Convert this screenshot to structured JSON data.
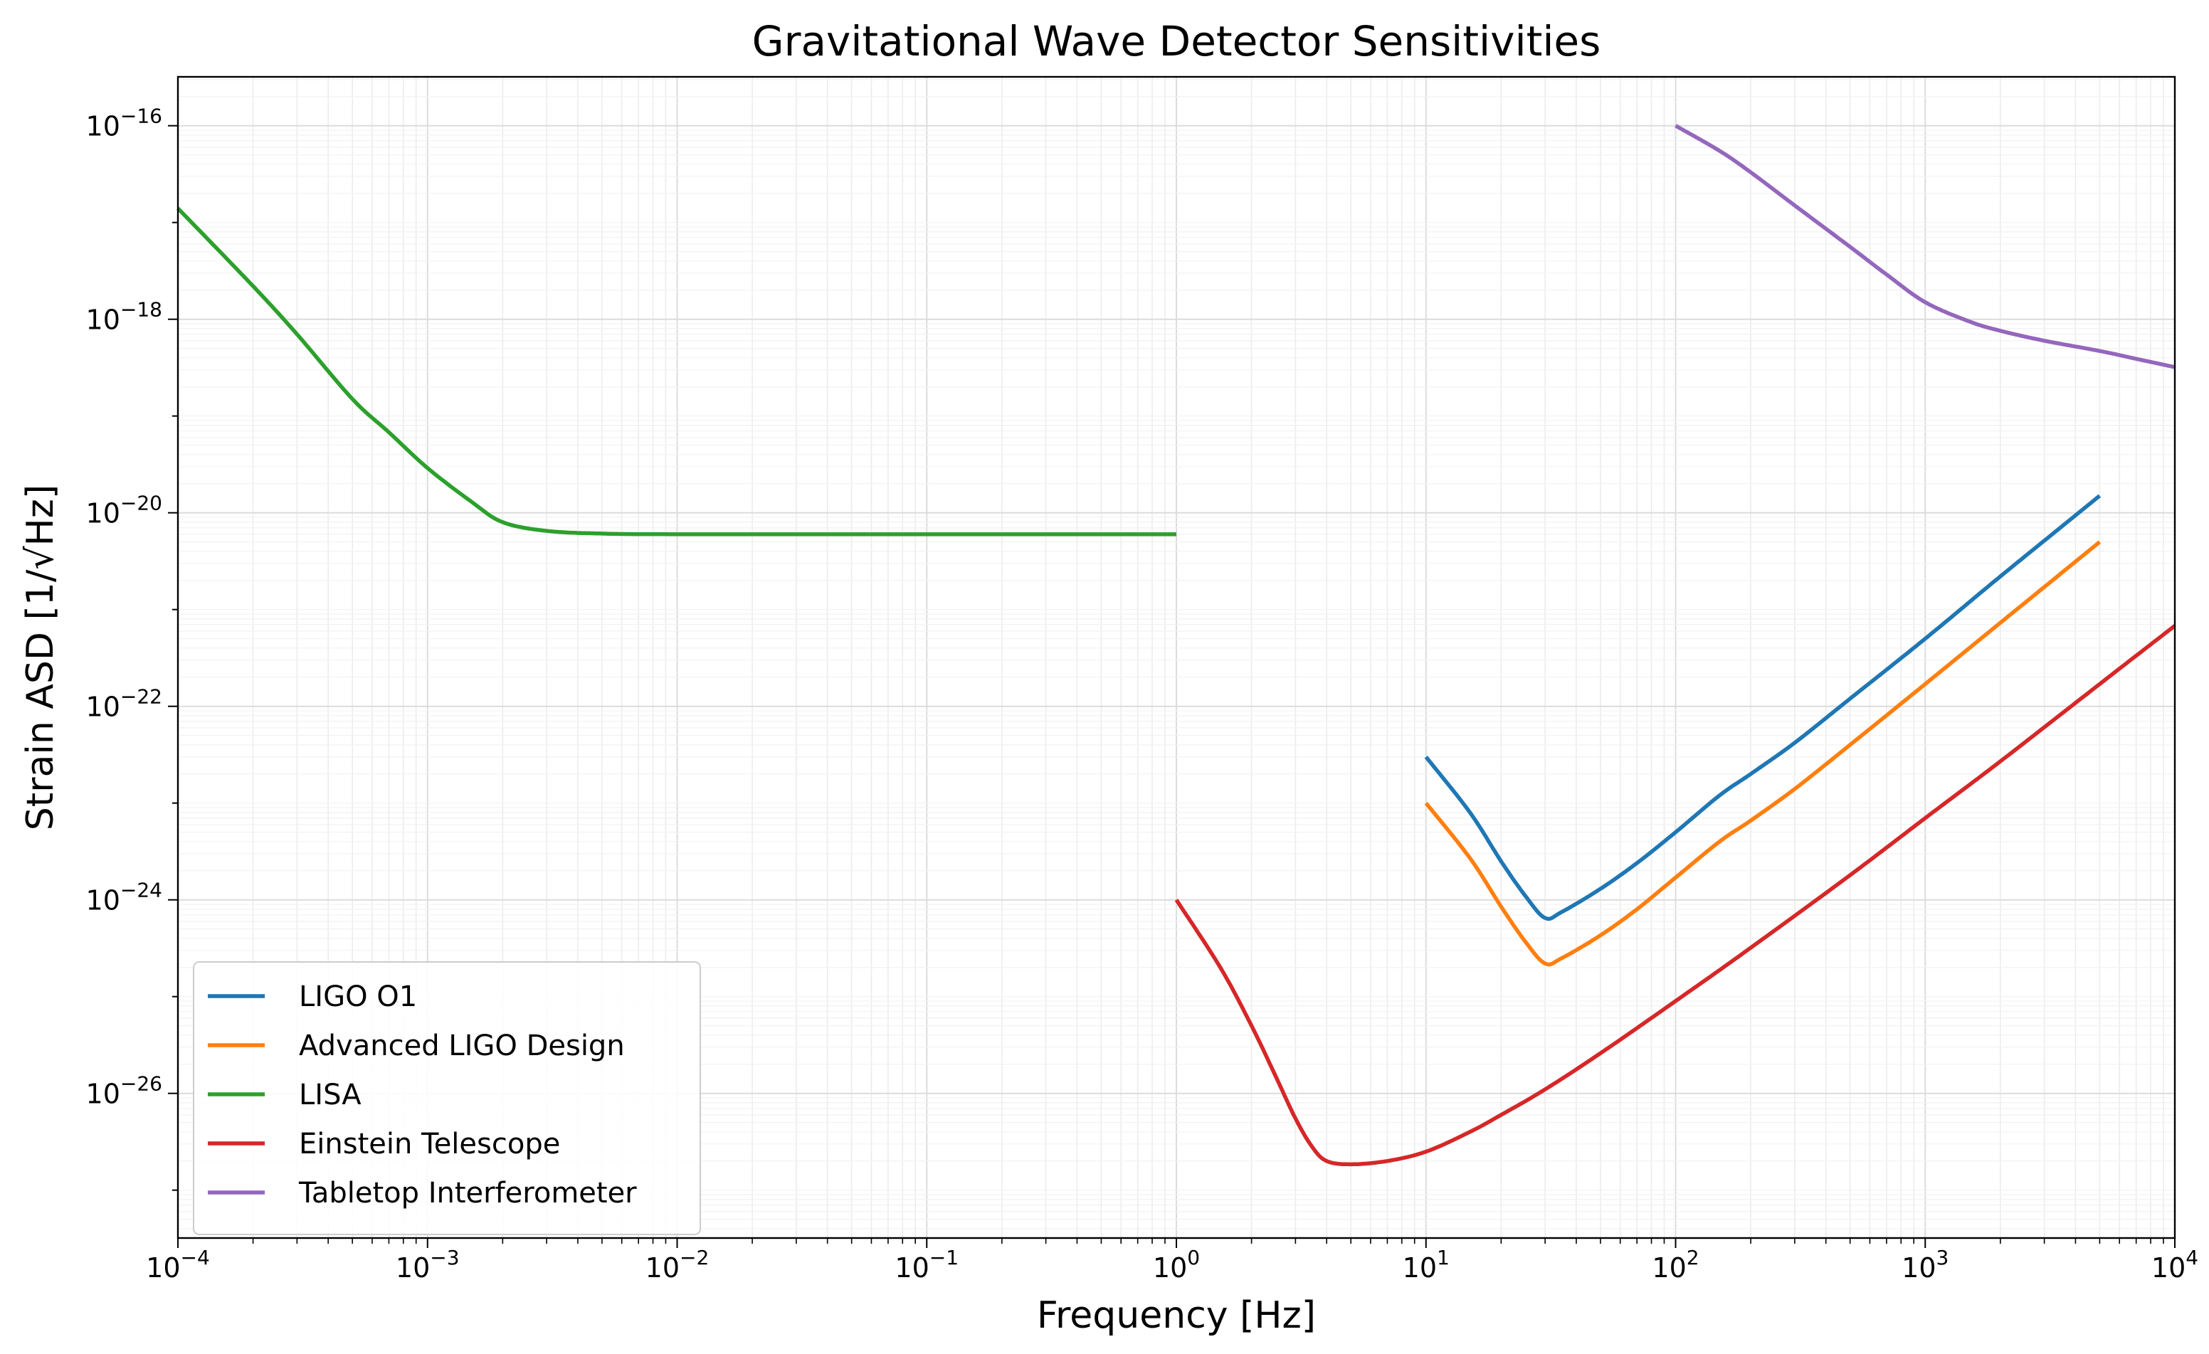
{
  "chart_data": {
    "type": "line",
    "title": "Gravitational Wave Detector Sensitivities",
    "xlabel": "Frequency [Hz]",
    "ylabel": "Strain ASD [1/√Hz]",
    "xscale": "log",
    "yscale": "log",
    "xlim": [
      0.0001,
      10000
    ],
    "ylim": [
      3.2e-28,
      3.2e-16
    ],
    "grid": "both",
    "legend_position": "lower-left",
    "x_ticks": [
      {
        "value": 0.0001,
        "base": "10",
        "exp": "−4"
      },
      {
        "value": 0.001,
        "base": "10",
        "exp": "−3"
      },
      {
        "value": 0.01,
        "base": "10",
        "exp": "−2"
      },
      {
        "value": 0.1,
        "base": "10",
        "exp": "−1"
      },
      {
        "value": 1,
        "base": "10",
        "exp": "0"
      },
      {
        "value": 10,
        "base": "10",
        "exp": "1"
      },
      {
        "value": 100,
        "base": "10",
        "exp": "2"
      },
      {
        "value": 1000,
        "base": "10",
        "exp": "3"
      },
      {
        "value": 10000,
        "base": "10",
        "exp": "4"
      }
    ],
    "y_ticks": [
      {
        "value": 1e-26,
        "base": "10",
        "exp": "−26"
      },
      {
        "value": 1e-24,
        "base": "10",
        "exp": "−24"
      },
      {
        "value": 1e-22,
        "base": "10",
        "exp": "−22"
      },
      {
        "value": 1e-20,
        "base": "10",
        "exp": "−20"
      },
      {
        "value": 1e-18,
        "base": "10",
        "exp": "−18"
      },
      {
        "value": 1e-16,
        "base": "10",
        "exp": "−16"
      }
    ],
    "series": [
      {
        "name": "LIGO O1",
        "color": "#1f77b4",
        "points": [
          [
            10,
            3e-23
          ],
          [
            15,
            8e-24
          ],
          [
            20,
            2.5e-24
          ],
          [
            25,
            1.1e-24
          ],
          [
            30,
            6.5e-25
          ],
          [
            35,
            7.5e-25
          ],
          [
            50,
            1.3e-24
          ],
          [
            70,
            2.4e-24
          ],
          [
            100,
            5e-24
          ],
          [
            150,
            1.2e-23
          ],
          [
            200,
            2e-23
          ],
          [
            300,
            4.2e-23
          ],
          [
            500,
            1.2e-22
          ],
          [
            1000,
            5e-22
          ],
          [
            2000,
            2.2e-21
          ],
          [
            5000,
            1.5e-20
          ]
        ]
      },
      {
        "name": "Advanced LIGO Design",
        "color": "#ff7f0e",
        "points": [
          [
            10,
            1e-23
          ],
          [
            15,
            2.7e-24
          ],
          [
            20,
            8.5e-25
          ],
          [
            25,
            3.7e-25
          ],
          [
            30,
            2.2e-25
          ],
          [
            35,
            2.5e-25
          ],
          [
            50,
            4.3e-25
          ],
          [
            70,
            8e-25
          ],
          [
            100,
            1.7e-24
          ],
          [
            150,
            4e-24
          ],
          [
            200,
            6.6e-24
          ],
          [
            300,
            1.4e-23
          ],
          [
            500,
            4e-23
          ],
          [
            1000,
            1.7e-22
          ],
          [
            2000,
            7.3e-22
          ],
          [
            5000,
            5e-21
          ]
        ]
      },
      {
        "name": "LISA",
        "color": "#2ca02c",
        "points": [
          [
            0.0001,
            1.4e-17
          ],
          [
            0.0002,
            2.2e-18
          ],
          [
            0.0003,
            7e-19
          ],
          [
            0.0005,
            1.5e-19
          ],
          [
            0.0007,
            6.8e-20
          ],
          [
            0.001,
            2.9e-20
          ],
          [
            0.0015,
            1.3e-20
          ],
          [
            0.002,
            8e-21
          ],
          [
            0.003,
            6.5e-21
          ],
          [
            0.005,
            6.1e-21
          ],
          [
            0.01,
            6e-21
          ],
          [
            0.1,
            6e-21
          ],
          [
            1,
            6e-21
          ]
        ]
      },
      {
        "name": "Einstein Telescope",
        "color": "#d62728",
        "points": [
          [
            1,
            1e-24
          ],
          [
            1.5,
            2e-25
          ],
          [
            2,
            5e-26
          ],
          [
            2.5,
            1.5e-26
          ],
          [
            3,
            5.5e-27
          ],
          [
            3.5,
            2.8e-27
          ],
          [
            4,
            2e-27
          ],
          [
            5,
            1.85e-27
          ],
          [
            7,
            2e-27
          ],
          [
            10,
            2.5e-27
          ],
          [
            15,
            4e-27
          ],
          [
            20,
            6e-27
          ],
          [
            30,
            1.1e-26
          ],
          [
            50,
            2.6e-26
          ],
          [
            100,
            9e-26
          ],
          [
            200,
            3.2e-25
          ],
          [
            500,
            1.8e-24
          ],
          [
            1000,
            7e-24
          ],
          [
            2000,
            2.7e-23
          ],
          [
            5000,
            1.7e-22
          ],
          [
            10000,
            6.8e-22
          ]
        ]
      },
      {
        "name": "Tabletop Interferometer",
        "color": "#9467bd",
        "points": [
          [
            100,
            1e-16
          ],
          [
            150,
            5.5e-17
          ],
          [
            200,
            3.3e-17
          ],
          [
            300,
            1.5e-17
          ],
          [
            500,
            5.6e-18
          ],
          [
            700,
            2.9e-18
          ],
          [
            1000,
            1.5e-18
          ],
          [
            1500,
            9.5e-19
          ],
          [
            2000,
            7.6e-19
          ],
          [
            3000,
            6e-19
          ],
          [
            5000,
            4.7e-19
          ],
          [
            7000,
            3.9e-19
          ],
          [
            10000,
            3.2e-19
          ]
        ]
      }
    ]
  }
}
